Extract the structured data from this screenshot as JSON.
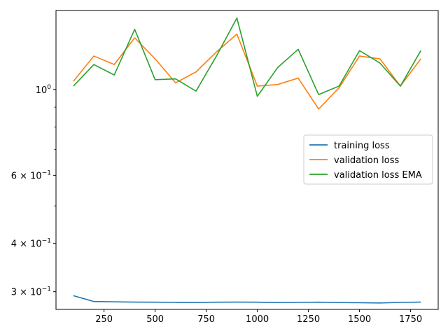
{
  "chart_data": {
    "type": "line",
    "yscale": "log",
    "xlim": [
      15,
      1885
    ],
    "ylim": [
      0.27,
      1.6
    ],
    "x_ticks": [
      250,
      500,
      750,
      1000,
      1250,
      1500,
      1750
    ],
    "x_tick_labels": [
      "250",
      "500",
      "750",
      "1000",
      "1250",
      "1500",
      "1750"
    ],
    "y_major_ticks": [
      {
        "value": 1.0,
        "label": "10",
        "exp": "0",
        "mant": ""
      },
      {
        "value": 0.6,
        "label": "6 × 10",
        "exp": "−1",
        "mant": "6"
      },
      {
        "value": 0.4,
        "label": "4 × 10",
        "exp": "−1",
        "mant": "4"
      },
      {
        "value": 0.3,
        "label": "3 × 10",
        "exp": "−1",
        "mant": "3"
      }
    ],
    "y_minor_ticks": [
      0.5,
      0.7,
      0.8,
      0.9
    ],
    "legend_position": "center-right",
    "grid": false,
    "x": [
      100,
      200,
      300,
      400,
      500,
      600,
      700,
      800,
      900,
      1000,
      1100,
      1200,
      1300,
      1400,
      1500,
      1600,
      1700,
      1800
    ],
    "series": [
      {
        "name": "training loss",
        "color": "#1f77b4",
        "values": [
          0.293,
          0.283,
          0.2825,
          0.282,
          0.2818,
          0.2815,
          0.2812,
          0.2818,
          0.282,
          0.2818,
          0.2812,
          0.2815,
          0.2818,
          0.2812,
          0.281,
          0.2805,
          0.2815,
          0.282
        ]
      },
      {
        "name": "validation loss",
        "color": "#ff7f0e",
        "values": [
          1.05,
          1.22,
          1.16,
          1.36,
          1.2,
          1.04,
          1.11,
          1.25,
          1.39,
          1.02,
          1.03,
          1.07,
          0.89,
          1.01,
          1.22,
          1.2,
          1.02,
          1.2
        ]
      },
      {
        "name": "validation loss EMA",
        "color": "#2ca02c",
        "values": [
          1.02,
          1.16,
          1.09,
          1.43,
          1.06,
          1.065,
          0.99,
          1.22,
          1.53,
          0.96,
          1.14,
          1.27,
          0.97,
          1.02,
          1.26,
          1.17,
          1.02,
          1.26
        ]
      }
    ]
  }
}
